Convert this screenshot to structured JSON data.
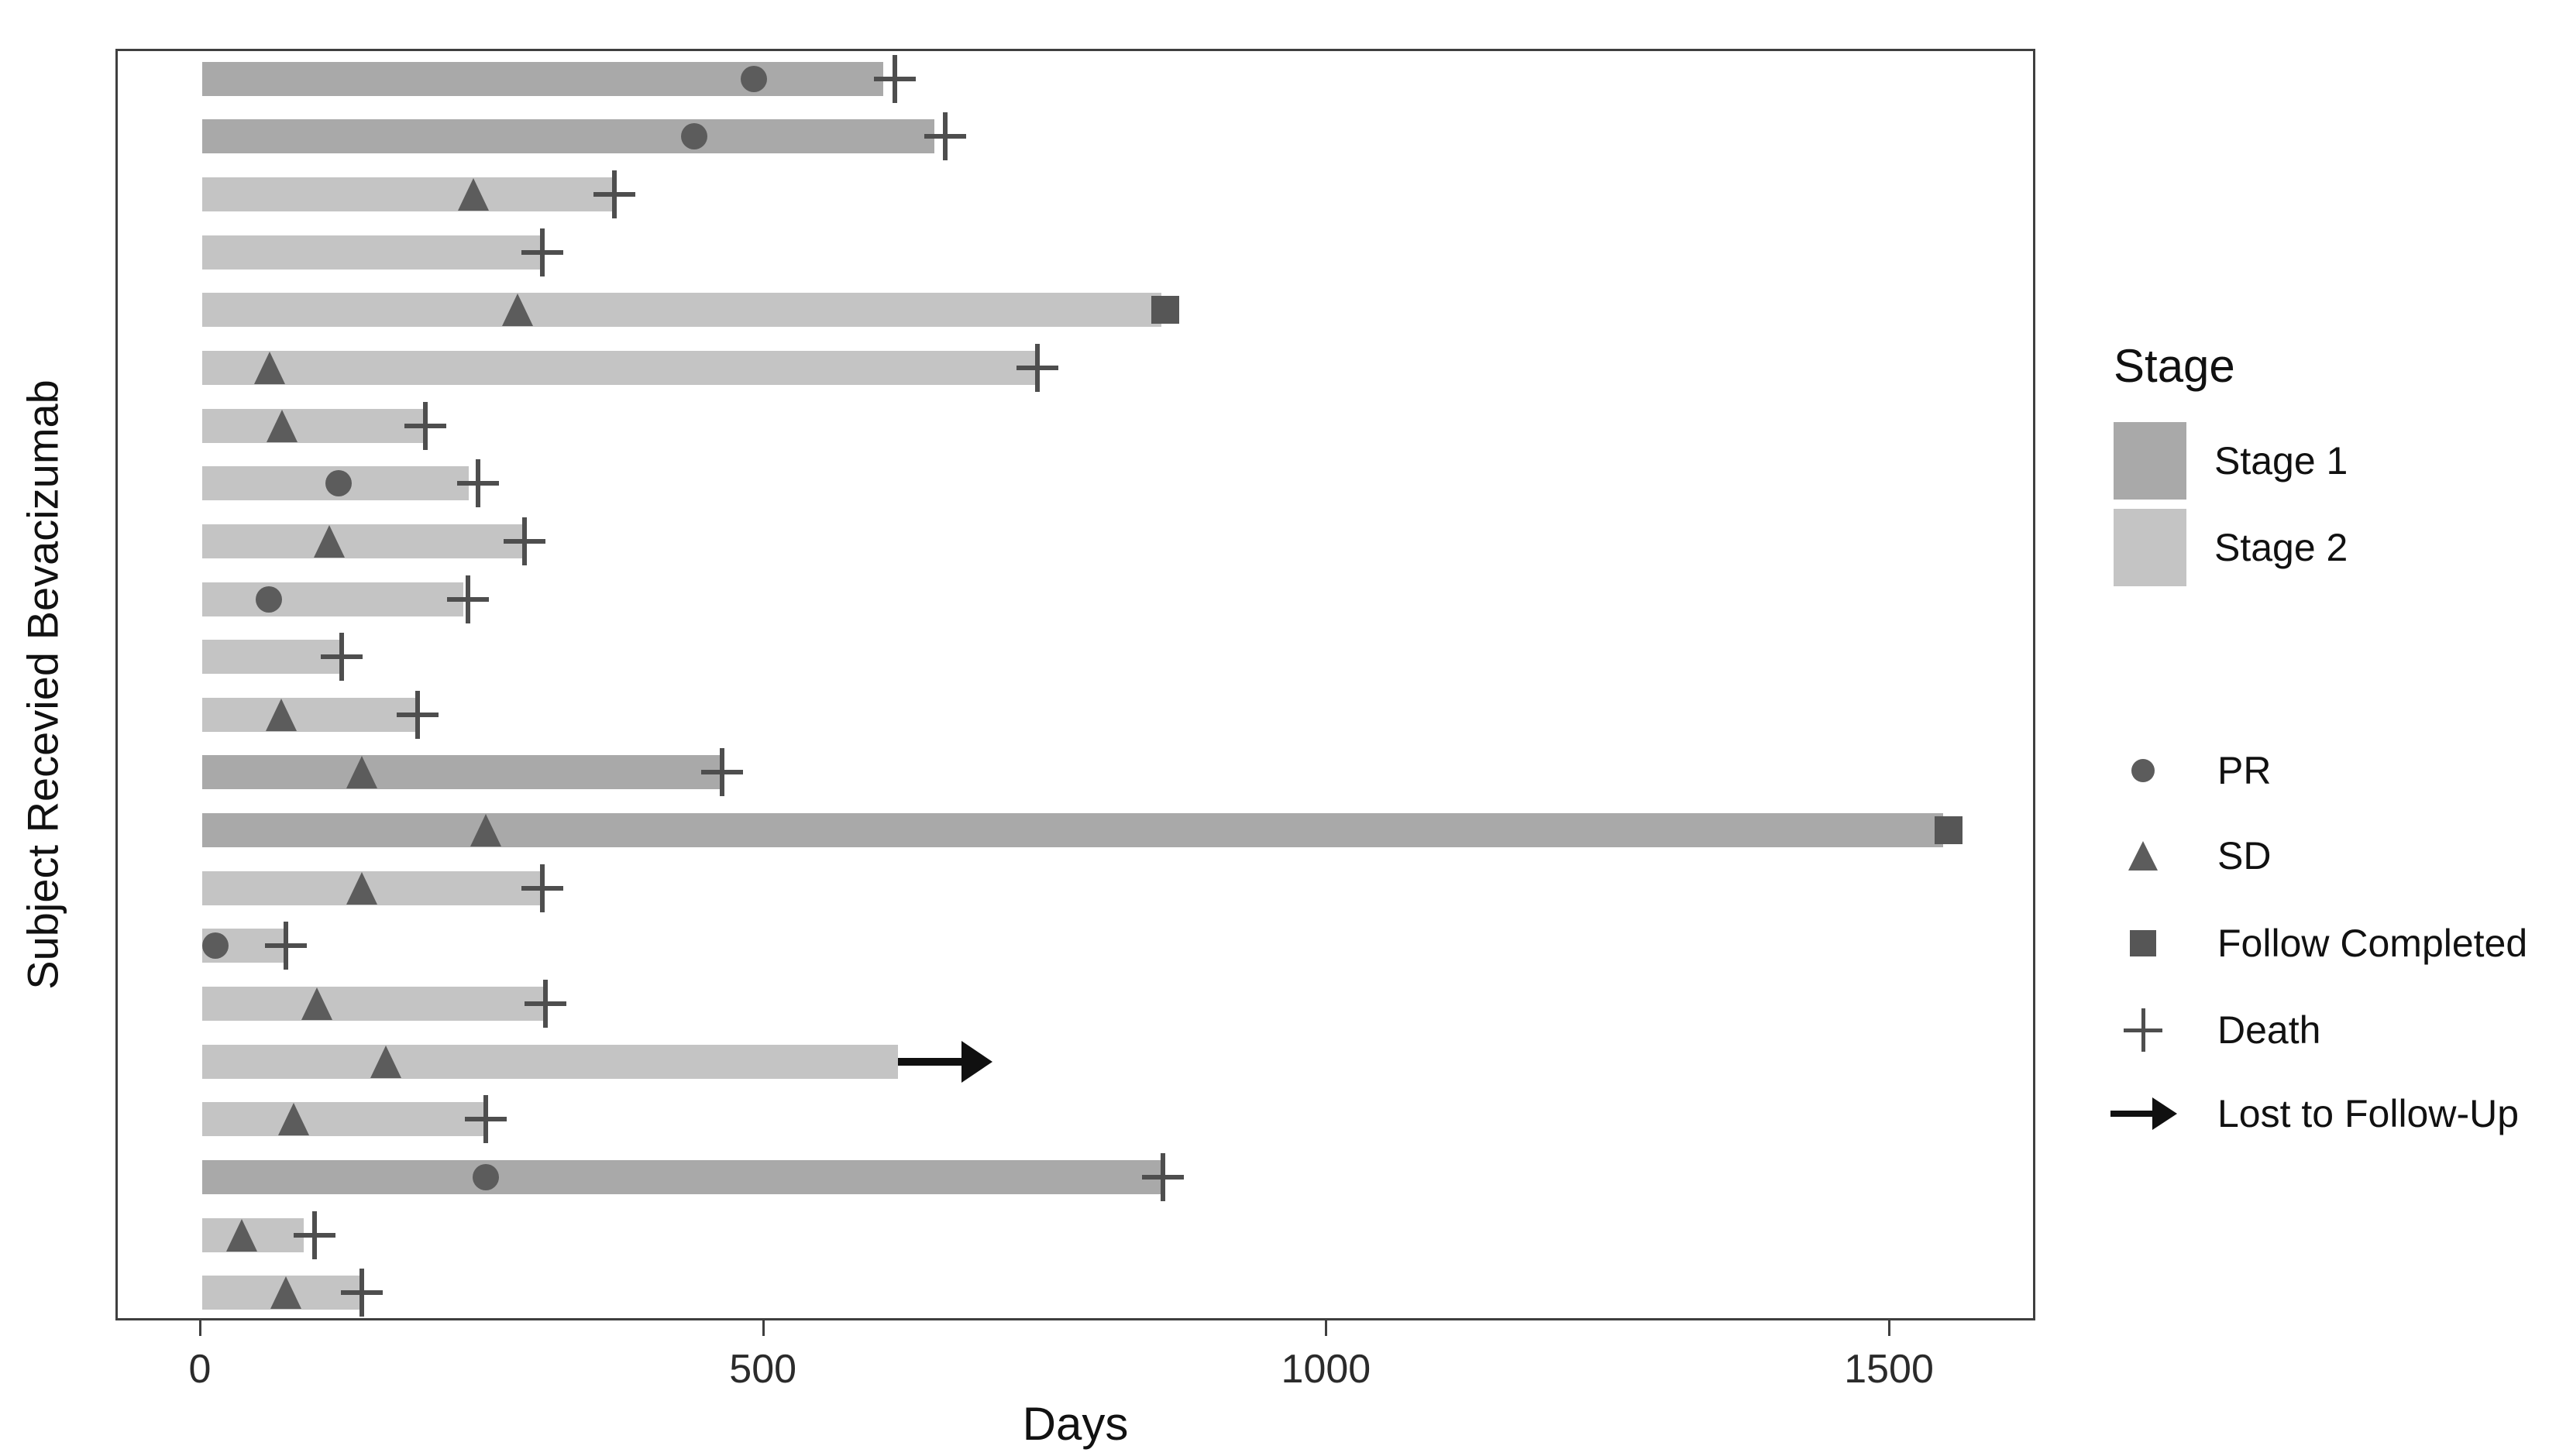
{
  "chart_data": {
    "type": "bar",
    "subtype": "swimmer-plot",
    "title": "",
    "xlabel": "Days",
    "ylabel": "Subject Recevied Bevacizumab",
    "x_ticks": [
      0,
      500,
      1000,
      1500
    ],
    "xlim": [
      -75,
      1630
    ],
    "grid": false,
    "legend_position": "right",
    "stage_colors": {
      "Stage 1": "#a9a9a9",
      "Stage 2": "#c4c4c4"
    },
    "marker_color": "#5c5c5c",
    "cross_color": "#4e4e4e",
    "arrow_color": "#101010",
    "axis_color": "#3f3f3f",
    "subjects": [
      {
        "stage": "Stage 1",
        "bar_end": 605,
        "pr": 490,
        "death": 615
      },
      {
        "stage": "Stage 1",
        "bar_end": 650,
        "pr": 437,
        "death": 660
      },
      {
        "stage": "Stage 2",
        "bar_end": 366,
        "sd": 241,
        "death": 366
      },
      {
        "stage": "Stage 2",
        "bar_end": 302,
        "death": 302
      },
      {
        "stage": "Stage 2",
        "bar_end": 852,
        "sd": 280,
        "follow_completed": 855
      },
      {
        "stage": "Stage 2",
        "bar_end": 740,
        "sd": 60,
        "death": 742
      },
      {
        "stage": "Stage 2",
        "bar_end": 197,
        "sd": 71,
        "death": 198
      },
      {
        "stage": "Stage 2",
        "bar_end": 237,
        "pr": 121,
        "death": 245
      },
      {
        "stage": "Stage 2",
        "bar_end": 286,
        "sd": 113,
        "death": 286
      },
      {
        "stage": "Stage 2",
        "bar_end": 232,
        "pr": 59,
        "death": 236
      },
      {
        "stage": "Stage 2",
        "bar_end": 124,
        "death": 124
      },
      {
        "stage": "Stage 2",
        "bar_end": 191,
        "sd": 70,
        "death": 191
      },
      {
        "stage": "Stage 1",
        "bar_end": 462,
        "sd": 142,
        "death": 462
      },
      {
        "stage": "Stage 1",
        "bar_end": 1546,
        "sd": 252,
        "follow_completed": 1551
      },
      {
        "stage": "Stage 2",
        "bar_end": 302,
        "sd": 142,
        "death": 302
      },
      {
        "stage": "Stage 2",
        "bar_end": 74,
        "pr": 12,
        "death": 74
      },
      {
        "stage": "Stage 2",
        "bar_end": 305,
        "sd": 102,
        "death": 305
      },
      {
        "stage": "Stage 2",
        "bar_end": 618,
        "sd": 163,
        "lost_to_followup": {
          "from": 618,
          "to": 702
        }
      },
      {
        "stage": "Stage 2",
        "bar_end": 252,
        "sd": 81,
        "death": 252
      },
      {
        "stage": "Stage 1",
        "bar_end": 853,
        "pr": 252,
        "death": 853
      },
      {
        "stage": "Stage 2",
        "bar_end": 90,
        "sd": 35,
        "death": 100
      },
      {
        "stage": "Stage 2",
        "bar_end": 142,
        "sd": 74,
        "death": 142
      }
    ]
  },
  "legend_stage": {
    "title": "Stage",
    "items": [
      {
        "label": "Stage 1",
        "color": "#a9a9a9"
      },
      {
        "label": "Stage 2",
        "color": "#c4c4c4"
      }
    ]
  },
  "legend_markers": {
    "items": [
      {
        "label": "PR",
        "symbol": "circle"
      },
      {
        "label": "SD",
        "symbol": "triangle"
      },
      {
        "label": "Follow Completed",
        "symbol": "square"
      },
      {
        "label": "Death",
        "symbol": "cross"
      },
      {
        "label": "Lost to Follow-Up",
        "symbol": "arrow"
      }
    ]
  }
}
